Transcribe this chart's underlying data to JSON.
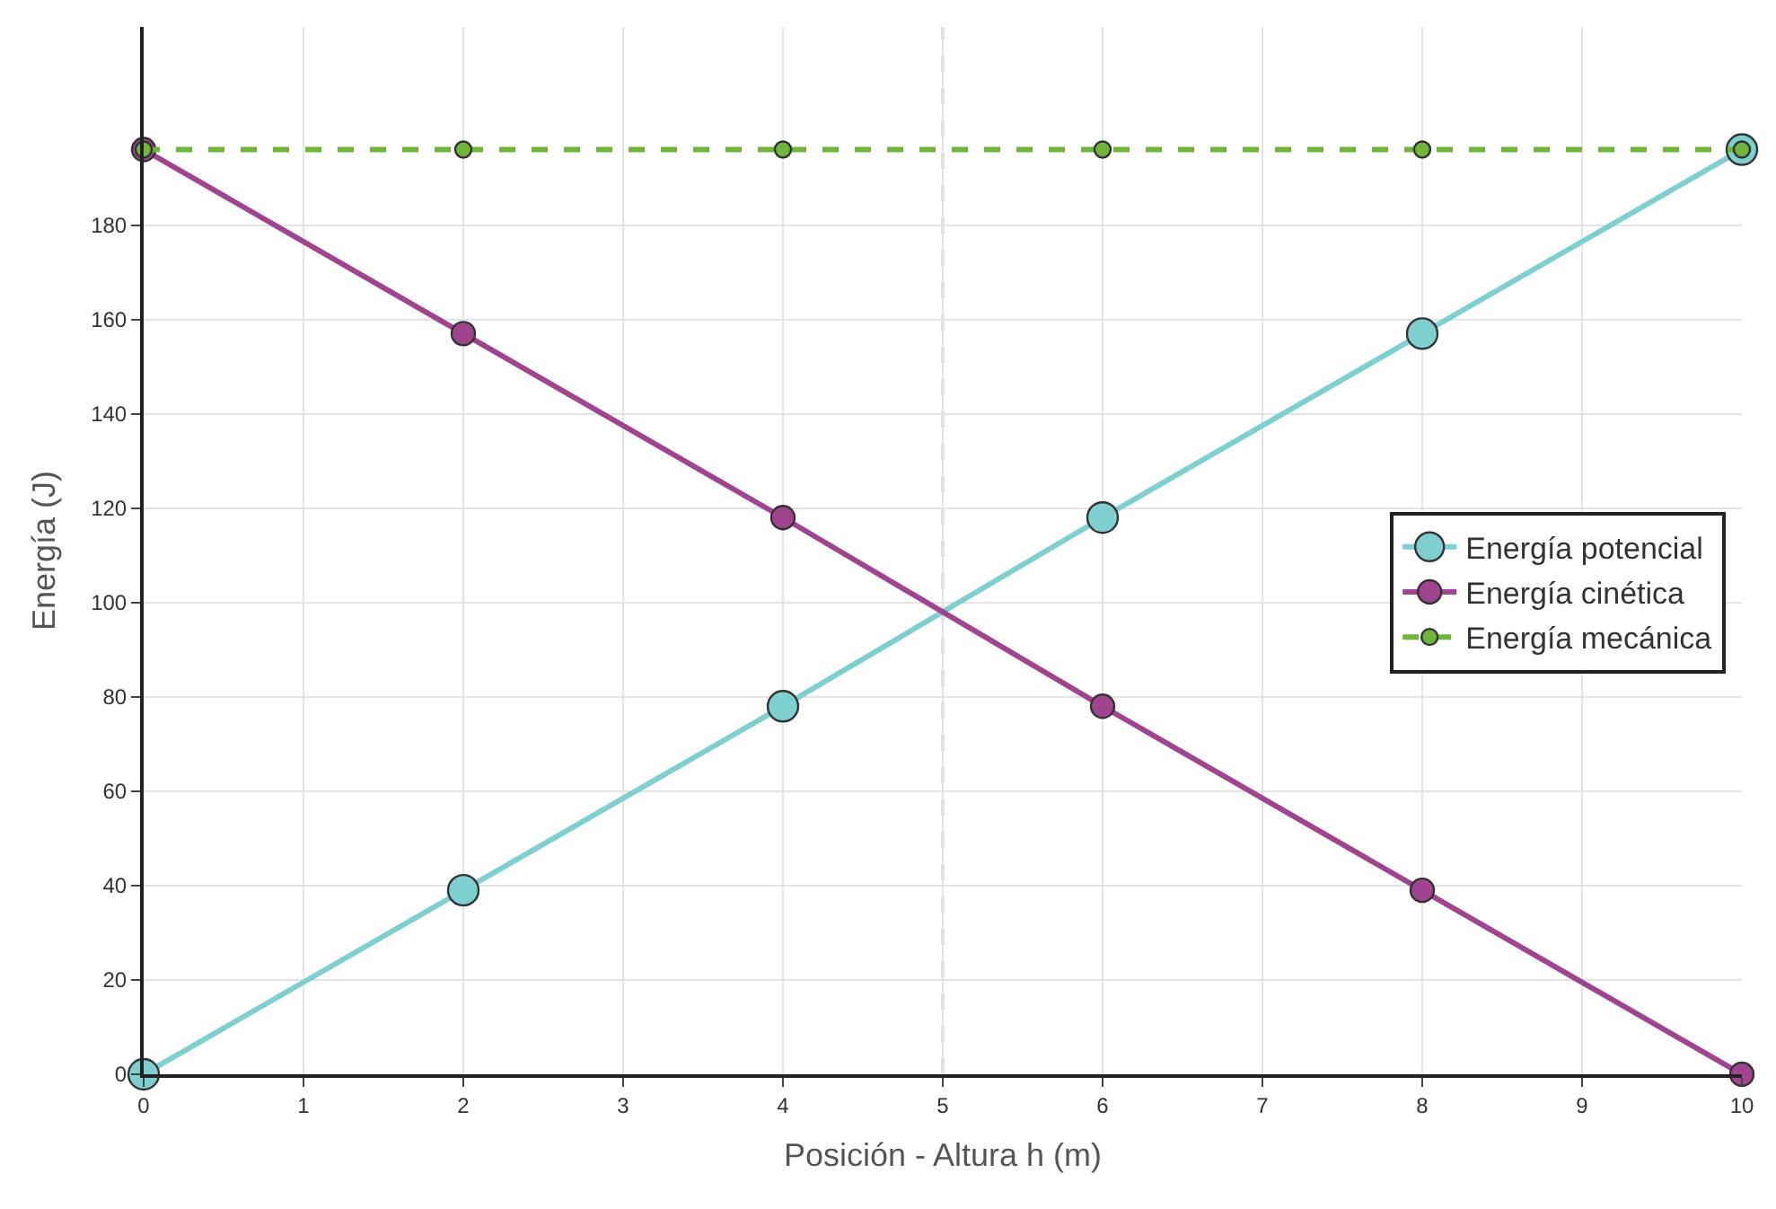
{
  "chart_data": {
    "type": "line",
    "xlabel": "Posición - Altura h (m)",
    "ylabel": "Energía (J)",
    "x": [
      0,
      2,
      4,
      6,
      8,
      10
    ],
    "series": [
      {
        "name": "Energía potencial",
        "color": "#7ecfcf",
        "values": [
          0,
          39,
          78,
          118,
          157,
          196
        ]
      },
      {
        "name": "Energía cinética",
        "color": "#a0448f",
        "values": [
          196,
          157,
          118,
          78,
          39,
          0
        ]
      },
      {
        "name": "Energía mecánica",
        "color": "#6fb53a",
        "values": [
          196,
          196,
          196,
          196,
          196,
          196
        ],
        "line_style": "dashed"
      }
    ],
    "xlim": [
      0,
      10
    ],
    "xticks": [
      0,
      1,
      2,
      3,
      4,
      5,
      6,
      7,
      8,
      9,
      10
    ],
    "ylim": [
      0,
      222
    ],
    "yticks": [
      0,
      20,
      40,
      60,
      80,
      100,
      120,
      140,
      160,
      180
    ],
    "ref_lines": [
      {
        "axis": "x",
        "value": 5,
        "label": null,
        "color": "#c8c8b4",
        "line_style": "dashed"
      }
    ],
    "grid": true,
    "legend": "right",
    "marker": "circle",
    "line_style": "solid"
  }
}
